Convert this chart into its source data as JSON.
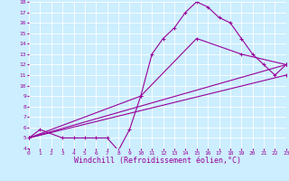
{
  "bg_color": "#cceeff",
  "line_color": "#990099",
  "grid_color": "#ffffff",
  "xlabel": "Windchill (Refroidissement éolien,°C)",
  "xlabel_fontsize": 6.0,
  "ylim": [
    4,
    18
  ],
  "xlim": [
    0,
    23
  ],
  "yticks": [
    4,
    5,
    6,
    7,
    8,
    9,
    10,
    11,
    12,
    13,
    14,
    15,
    16,
    17,
    18
  ],
  "xticks": [
    0,
    1,
    2,
    3,
    4,
    5,
    6,
    7,
    8,
    9,
    10,
    11,
    12,
    13,
    14,
    15,
    16,
    17,
    18,
    19,
    20,
    21,
    22,
    23
  ],
  "tick_labelsize": 4.5,
  "line1_x": [
    0,
    1,
    3,
    4,
    5,
    6,
    7,
    8,
    9,
    10,
    11,
    12,
    13,
    14,
    15,
    16,
    17,
    18,
    19,
    20,
    21,
    22,
    23
  ],
  "line1_y": [
    5.0,
    5.8,
    5.0,
    5.0,
    5.0,
    5.0,
    5.0,
    3.8,
    5.8,
    9.0,
    13.0,
    14.5,
    15.5,
    17.0,
    18.0,
    17.5,
    16.5,
    16.0,
    14.5,
    13.0,
    12.0,
    11.0,
    12.0
  ],
  "line2_x": [
    0,
    23
  ],
  "line2_y": [
    5.0,
    12.0
  ],
  "line3_x": [
    0,
    23
  ],
  "line3_y": [
    5.0,
    11.0
  ],
  "line4_x": [
    0,
    10,
    15,
    19,
    23
  ],
  "line4_y": [
    5.0,
    9.0,
    14.5,
    13.0,
    12.0
  ]
}
